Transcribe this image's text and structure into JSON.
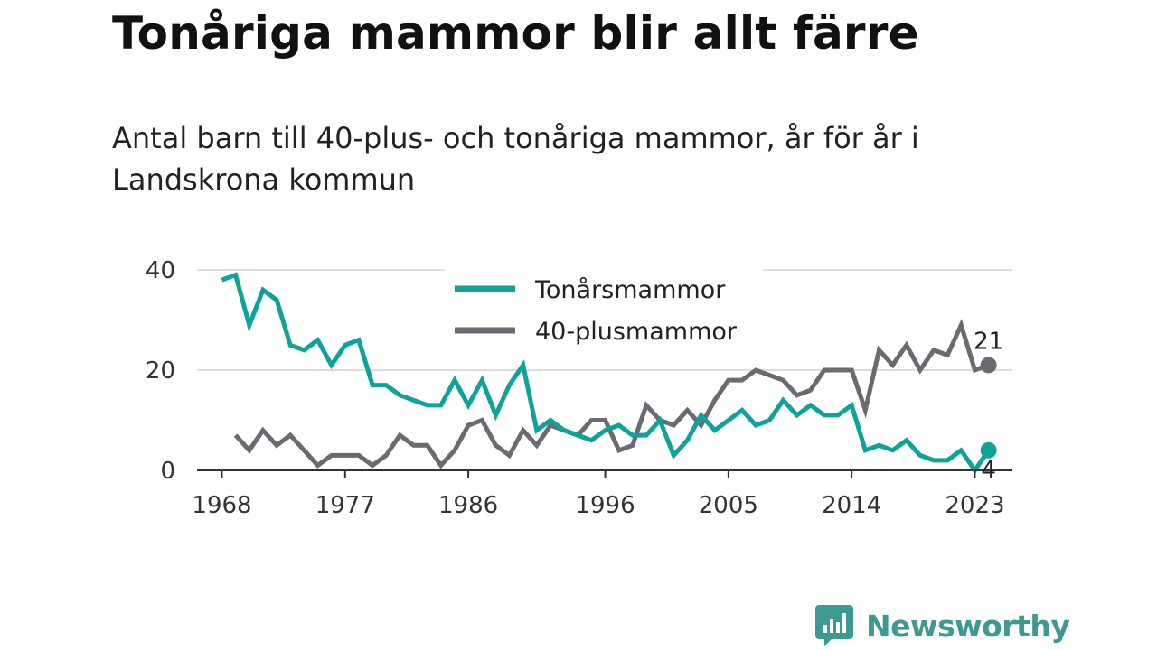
{
  "title": "Tonåriga mammor blir allt färre",
  "subtitle": "Antal barn till 40-plus- och tonåriga mammor, år för år i Landskrona kommun",
  "brand": {
    "name": "Newsworthy",
    "icon": "newsworthy-logo-icon",
    "color": "#3c9a93"
  },
  "chart_data": {
    "type": "line",
    "xlim": [
      1968,
      2023
    ],
    "ylim": [
      0,
      40
    ],
    "xticks": [
      1968,
      1977,
      1986,
      1996,
      2005,
      2014,
      2023
    ],
    "yticks": [
      0,
      20,
      40
    ],
    "grid": true,
    "legend_position": "top-center",
    "series": [
      {
        "name": "Tonårsmammor",
        "color": "#0da39a",
        "end_label": "4",
        "points": [
          [
            1968,
            38
          ],
          [
            1969,
            39
          ],
          [
            1970,
            29
          ],
          [
            1971,
            36
          ],
          [
            1972,
            34
          ],
          [
            1973,
            25
          ],
          [
            1974,
            24
          ],
          [
            1975,
            26
          ],
          [
            1976,
            21
          ],
          [
            1977,
            25
          ],
          [
            1978,
            26
          ],
          [
            1979,
            17
          ],
          [
            1980,
            17
          ],
          [
            1981,
            15
          ],
          [
            1982,
            14
          ],
          [
            1983,
            13
          ],
          [
            1984,
            13
          ],
          [
            1985,
            18
          ],
          [
            1986,
            13
          ],
          [
            1987,
            18
          ],
          [
            1988,
            11
          ],
          [
            1989,
            17
          ],
          [
            1990,
            21
          ],
          [
            1991,
            8
          ],
          [
            1992,
            10
          ],
          [
            1993,
            8
          ],
          [
            1994,
            7
          ],
          [
            1995,
            6
          ],
          [
            1996,
            8
          ],
          [
            1997,
            9
          ],
          [
            1998,
            7
          ],
          [
            1999,
            7
          ],
          [
            2000,
            10
          ],
          [
            2001,
            3
          ],
          [
            2002,
            6
          ],
          [
            2003,
            11
          ],
          [
            2004,
            8
          ],
          [
            2005,
            10
          ],
          [
            2006,
            12
          ],
          [
            2007,
            9
          ],
          [
            2008,
            10
          ],
          [
            2009,
            14
          ],
          [
            2010,
            11
          ],
          [
            2011,
            13
          ],
          [
            2012,
            11
          ],
          [
            2013,
            11
          ],
          [
            2014,
            13
          ],
          [
            2015,
            4
          ],
          [
            2016,
            5
          ],
          [
            2017,
            4
          ],
          [
            2018,
            6
          ],
          [
            2019,
            3
          ],
          [
            2020,
            2
          ],
          [
            2021,
            2
          ],
          [
            2022,
            4
          ],
          [
            2023,
            0
          ],
          [
            2024,
            4
          ]
        ]
      },
      {
        "name": "40-plusmammor",
        "color": "#6b6a71",
        "end_label": "21",
        "points": [
          [
            1969,
            7
          ],
          [
            1970,
            4
          ],
          [
            1971,
            8
          ],
          [
            1972,
            5
          ],
          [
            1973,
            7
          ],
          [
            1974,
            4
          ],
          [
            1975,
            1
          ],
          [
            1976,
            3
          ],
          [
            1977,
            3
          ],
          [
            1978,
            3
          ],
          [
            1979,
            1
          ],
          [
            1980,
            3
          ],
          [
            1981,
            7
          ],
          [
            1982,
            5
          ],
          [
            1983,
            5
          ],
          [
            1984,
            1
          ],
          [
            1985,
            4
          ],
          [
            1986,
            9
          ],
          [
            1987,
            10
          ],
          [
            1988,
            5
          ],
          [
            1989,
            3
          ],
          [
            1990,
            8
          ],
          [
            1991,
            5
          ],
          [
            1992,
            9
          ],
          [
            1993,
            8
          ],
          [
            1994,
            7
          ],
          [
            1995,
            10
          ],
          [
            1996,
            10
          ],
          [
            1997,
            4
          ],
          [
            1998,
            5
          ],
          [
            1999,
            13
          ],
          [
            2000,
            10
          ],
          [
            2001,
            9
          ],
          [
            2002,
            12
          ],
          [
            2003,
            9
          ],
          [
            2004,
            14
          ],
          [
            2005,
            18
          ],
          [
            2006,
            18
          ],
          [
            2007,
            20
          ],
          [
            2008,
            19
          ],
          [
            2009,
            18
          ],
          [
            2010,
            15
          ],
          [
            2011,
            16
          ],
          [
            2012,
            20
          ],
          [
            2013,
            20
          ],
          [
            2014,
            20
          ],
          [
            2015,
            12
          ],
          [
            2016,
            24
          ],
          [
            2017,
            21
          ],
          [
            2018,
            25
          ],
          [
            2019,
            20
          ],
          [
            2020,
            24
          ],
          [
            2021,
            23
          ],
          [
            2022,
            29
          ],
          [
            2023,
            20
          ],
          [
            2024,
            21
          ]
        ]
      }
    ]
  }
}
